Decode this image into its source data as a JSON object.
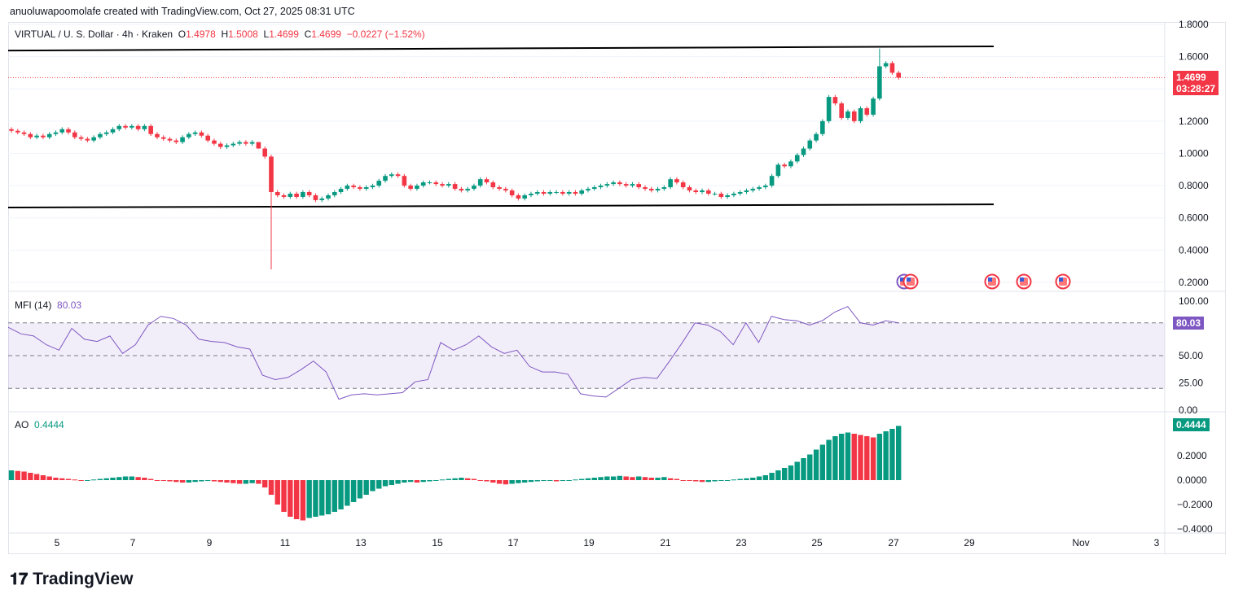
{
  "credit": "anuoluwapoomolafe created with TradingView.com, Oct 27, 2025 08:31 UTC",
  "legend": {
    "symbol": "VIRTUAL / U. S. Dollar · 4h · Kraken",
    "o_label": "O",
    "o": "1.4978",
    "h_label": "H",
    "h": "1.5008",
    "l_label": "L",
    "l": "1.4699",
    "c_label": "C",
    "c": "1.4699",
    "change": "−0.0227 (−1.52%)"
  },
  "price_axis": [
    "1.8000",
    "1.6000",
    "1.2000",
    "1.0000",
    "0.8000",
    "0.6000",
    "0.4000",
    "0.2000"
  ],
  "last_price": {
    "value": "1.4699",
    "countdown": "03:28:27"
  },
  "mfi": {
    "label": "MFI (14)",
    "value": "80.03",
    "axis": [
      "100.00",
      "50.00",
      "25.00",
      "0.00"
    ],
    "bands": [
      80,
      50,
      20
    ]
  },
  "ao": {
    "label": "AO",
    "value": "0.4444",
    "axis": [
      "0.2000",
      "0.0000",
      "−0.2000",
      "−0.4000"
    ]
  },
  "date_axis": [
    "5",
    "7",
    "9",
    "11",
    "13",
    "15",
    "17",
    "19",
    "21",
    "23",
    "25",
    "27",
    "29",
    "Nov",
    "3"
  ],
  "logo": "TradingView",
  "colors": {
    "up": "#089981",
    "down": "#f23645",
    "mfi": "#7e57c2",
    "ao_up": "#089981",
    "ao_down": "#f23645"
  },
  "chart_data": {
    "type": "candlestick",
    "interval": "4h",
    "closes": [
      1.14,
      1.13,
      1.12,
      1.1,
      1.11,
      1.1,
      1.12,
      1.13,
      1.15,
      1.13,
      1.1,
      1.09,
      1.08,
      1.1,
      1.12,
      1.13,
      1.15,
      1.17,
      1.16,
      1.17,
      1.15,
      1.17,
      1.12,
      1.1,
      1.09,
      1.08,
      1.07,
      1.1,
      1.12,
      1.13,
      1.11,
      1.08,
      1.06,
      1.04,
      1.05,
      1.06,
      1.07,
      1.06,
      1.07,
      1.03,
      0.98,
      0.76,
      0.74,
      0.73,
      0.75,
      0.73,
      0.76,
      0.74,
      0.71,
      0.72,
      0.74,
      0.76,
      0.78,
      0.8,
      0.79,
      0.78,
      0.79,
      0.8,
      0.83,
      0.86,
      0.87,
      0.86,
      0.8,
      0.78,
      0.8,
      0.82,
      0.82,
      0.81,
      0.8,
      0.81,
      0.78,
      0.77,
      0.78,
      0.8,
      0.84,
      0.82,
      0.79,
      0.78,
      0.77,
      0.74,
      0.72,
      0.74,
      0.75,
      0.76,
      0.75,
      0.76,
      0.76,
      0.75,
      0.76,
      0.75,
      0.77,
      0.78,
      0.79,
      0.8,
      0.81,
      0.82,
      0.81,
      0.8,
      0.81,
      0.79,
      0.78,
      0.77,
      0.78,
      0.79,
      0.84,
      0.82,
      0.79,
      0.77,
      0.76,
      0.77,
      0.75,
      0.75,
      0.73,
      0.74,
      0.75,
      0.76,
      0.77,
      0.78,
      0.79,
      0.8,
      0.86,
      0.93,
      0.92,
      0.95,
      0.99,
      1.03,
      1.08,
      1.12,
      1.2,
      1.35,
      1.31,
      1.22,
      1.26,
      1.2,
      1.28,
      1.24,
      1.34,
      1.54,
      1.56,
      1.5,
      1.4699
    ],
    "wick_extremes": [
      {
        "index": 39,
        "high": 1.02
      },
      {
        "index": 41,
        "low": 0.28
      },
      {
        "index": 137,
        "high": 1.65
      }
    ],
    "trendlines": [
      {
        "from": 1.638,
        "to": 1.664
      },
      {
        "from": 0.664,
        "to": 0.684
      }
    ],
    "mfi_values": [
      76,
      70,
      68,
      60,
      55,
      75,
      65,
      63,
      68,
      52,
      60,
      78,
      86,
      84,
      78,
      65,
      63,
      62,
      58,
      56,
      32,
      28,
      30,
      37,
      45,
      35,
      10,
      14,
      15,
      14,
      15,
      16,
      26,
      28,
      62,
      55,
      60,
      68,
      58,
      52,
      55,
      40,
      35,
      35,
      33,
      15,
      13,
      12,
      20,
      28,
      30,
      29,
      45,
      62,
      80,
      78,
      72,
      60,
      80,
      62,
      86,
      83,
      82,
      78,
      82,
      90,
      95,
      80,
      78,
      82,
      80
    ],
    "ao_values": [
      0.08,
      0.075,
      0.07,
      0.06,
      0.05,
      0.04,
      0.03,
      0.02,
      0.015,
      0.01,
      0.005,
      0,
      0,
      0.005,
      0.01,
      0.015,
      0.02,
      0.025,
      0.03,
      0.03,
      0.025,
      0.02,
      0.01,
      0,
      -0.005,
      -0.01,
      -0.015,
      -0.02,
      -0.02,
      -0.015,
      -0.01,
      -0.005,
      -0.01,
      -0.015,
      -0.02,
      -0.025,
      -0.03,
      -0.03,
      -0.025,
      -0.03,
      -0.06,
      -0.12,
      -0.2,
      -0.26,
      -0.3,
      -0.32,
      -0.33,
      -0.31,
      -0.3,
      -0.29,
      -0.28,
      -0.26,
      -0.24,
      -0.21,
      -0.18,
      -0.15,
      -0.12,
      -0.09,
      -0.07,
      -0.05,
      -0.04,
      -0.03,
      -0.02,
      -0.015,
      -0.02,
      -0.015,
      -0.01,
      0,
      0.005,
      0.01,
      0.015,
      0.02,
      0.015,
      0.01,
      0,
      -0.01,
      -0.02,
      -0.03,
      -0.035,
      -0.03,
      -0.025,
      -0.02,
      -0.015,
      -0.01,
      -0.005,
      -0.005,
      -0.01,
      -0.005,
      0,
      0.005,
      0.01,
      0.015,
      0.02,
      0.025,
      0.03,
      0.03,
      0.035,
      0.03,
      0.025,
      0.03,
      0.025,
      0.02,
      0.02,
      0.025,
      0.015,
      0.01,
      0,
      -0.005,
      -0.01,
      -0.015,
      -0.015,
      -0.01,
      -0.005,
      0,
      0.005,
      0.01,
      0.015,
      0.02,
      0.03,
      0.04,
      0.06,
      0.08,
      0.1,
      0.12,
      0.15,
      0.18,
      0.21,
      0.25,
      0.29,
      0.33,
      0.36,
      0.38,
      0.39,
      0.38,
      0.37,
      0.36,
      0.35,
      0.38,
      0.4,
      0.42,
      0.4444
    ],
    "events": [
      "us-flag",
      "us-flag",
      "us-flag",
      "us-flag",
      "us-flag"
    ]
  }
}
